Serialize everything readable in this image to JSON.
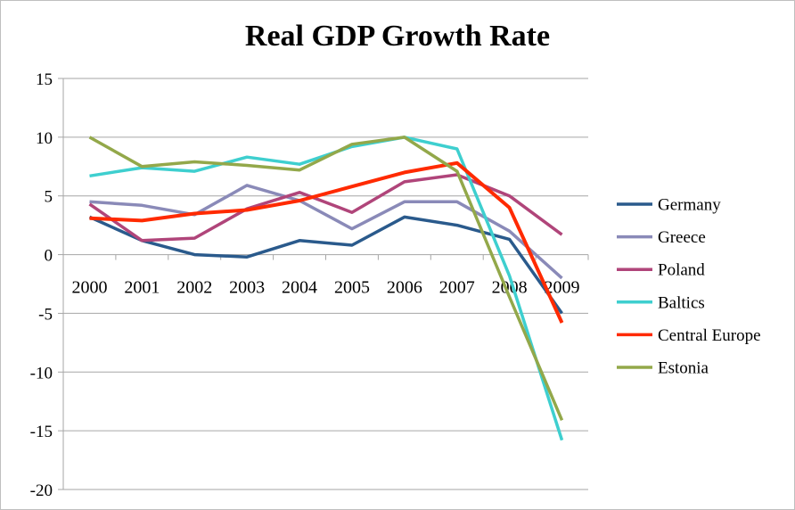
{
  "chart_data": {
    "type": "line",
    "title": "Real GDP Growth Rate",
    "xlabel": "",
    "ylabel": "",
    "categories": [
      "2000",
      "2001",
      "2002",
      "2003",
      "2004",
      "2005",
      "2006",
      "2007",
      "2008",
      "2009"
    ],
    "ylim": [
      -20,
      15
    ],
    "yticks": [
      15,
      10,
      5,
      0,
      -5,
      -10,
      -15,
      -20
    ],
    "ytick_labels": [
      "15",
      "10",
      "5",
      "0",
      "-5",
      "-10",
      "-15",
      "-20"
    ],
    "grid": true,
    "legend_position": "right",
    "series": [
      {
        "name": "Germany",
        "color": "#2a5a8c",
        "values": [
          3.2,
          1.2,
          0.0,
          -0.2,
          1.2,
          0.8,
          3.2,
          2.5,
          1.3,
          -5.0
        ]
      },
      {
        "name": "Greece",
        "color": "#8a8ab8",
        "values": [
          4.5,
          4.2,
          3.4,
          5.9,
          4.6,
          2.2,
          4.5,
          4.5,
          2.0,
          -2.0
        ]
      },
      {
        "name": "Poland",
        "color": "#b0457a",
        "values": [
          4.3,
          1.2,
          1.4,
          3.9,
          5.3,
          3.6,
          6.2,
          6.8,
          5.0,
          1.7
        ]
      },
      {
        "name": "Baltics",
        "color": "#3ecfcf",
        "values": [
          6.7,
          7.4,
          7.1,
          8.3,
          7.7,
          9.2,
          10.0,
          9.0,
          -1.8,
          -15.8
        ]
      },
      {
        "name": "Central Europe",
        "color": "#ff2a00",
        "values": [
          3.1,
          2.9,
          3.5,
          3.8,
          4.6,
          5.8,
          7.0,
          7.8,
          4.0,
          -5.8
        ]
      },
      {
        "name": "Estonia",
        "color": "#93a84a",
        "values": [
          10.0,
          7.5,
          7.9,
          7.6,
          7.2,
          9.4,
          10.0,
          7.1,
          -3.6,
          -14.1
        ]
      }
    ]
  }
}
